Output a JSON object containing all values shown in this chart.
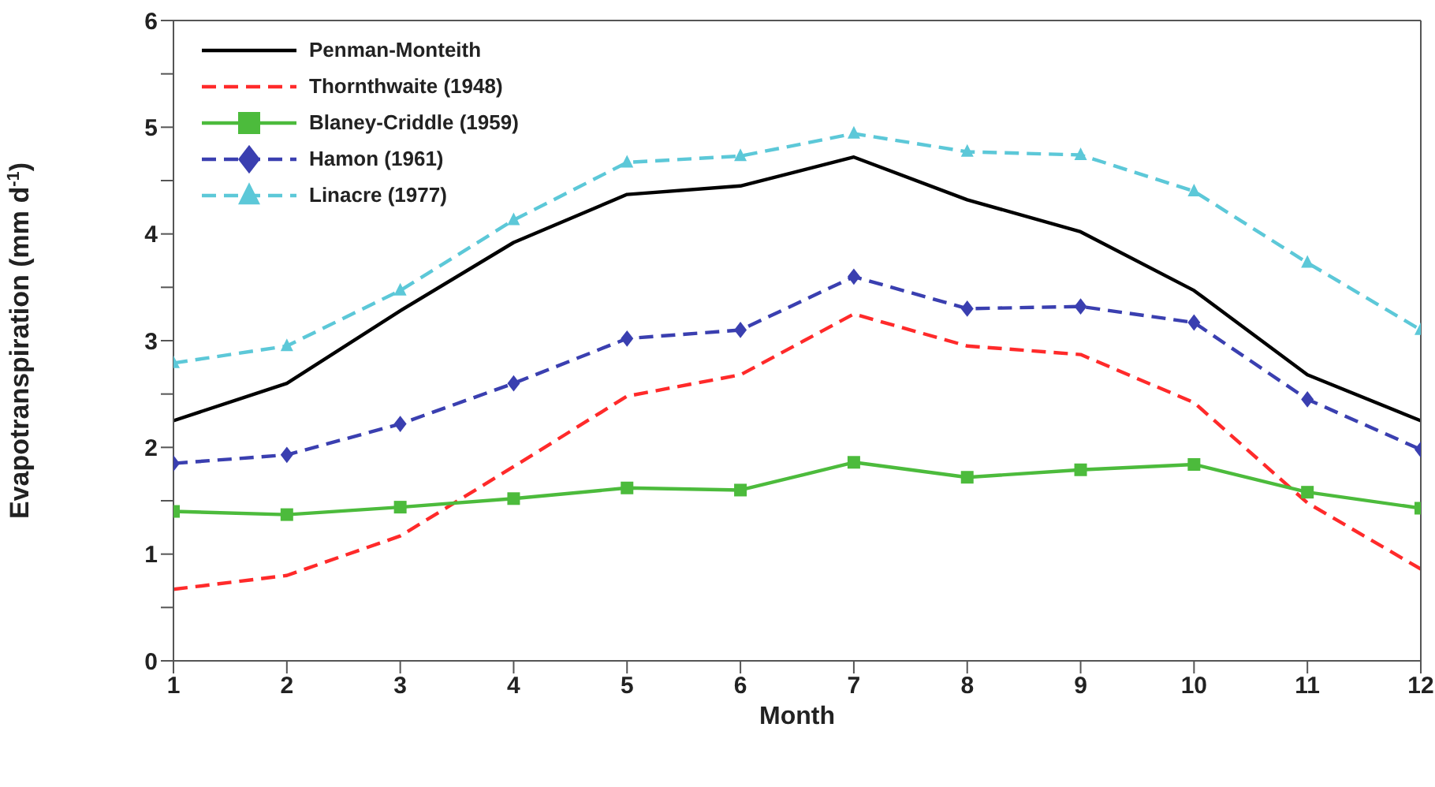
{
  "chart_data": {
    "type": "line",
    "xlabel": "Month",
    "ylabel": "Evapotranspiration (mm d$^{-1}$)",
    "x": [
      1,
      2,
      3,
      4,
      5,
      6,
      7,
      8,
      9,
      10,
      11,
      12
    ],
    "xlim": [
      1,
      12
    ],
    "xticks": [
      1,
      2,
      3,
      4,
      5,
      6,
      7,
      8,
      9,
      10,
      11,
      12
    ],
    "ylim": [
      0,
      6
    ],
    "yticks": [
      0,
      {
        "value": 0.5,
        "label": null
      },
      1,
      {
        "value": 1.5,
        "label": null
      },
      2,
      {
        "value": 2.5,
        "label": null
      },
      3,
      {
        "value": 3.5,
        "label": null
      },
      4,
      {
        "value": 4.5,
        "label": null
      },
      5,
      {
        "value": 5.5,
        "label": null
      },
      6
    ],
    "legend": "top left",
    "series": [
      {
        "name": "Penman-Monteith",
        "color": "#000000",
        "line_style": "solid",
        "marker": "none",
        "values": [
          2.25,
          2.6,
          3.28,
          3.92,
          4.37,
          4.45,
          4.72,
          4.32,
          4.02,
          3.47,
          2.68,
          2.25
        ]
      },
      {
        "name": "Thornthwaite (1948)",
        "color": "#ff2a2a",
        "line_style": "dashed",
        "marker": "none",
        "values": [
          0.67,
          0.8,
          1.17,
          1.82,
          2.48,
          2.68,
          3.25,
          2.95,
          2.87,
          2.42,
          1.48,
          0.86
        ]
      },
      {
        "name": "Blaney-Criddle (1959)",
        "color": "#4cbb3c",
        "line_style": "solid",
        "marker": "square",
        "values": [
          1.4,
          1.37,
          1.44,
          1.52,
          1.62,
          1.6,
          1.86,
          1.72,
          1.79,
          1.84,
          1.58,
          1.43
        ]
      },
      {
        "name": "Hamon (1961)",
        "color": "#3a3fb0",
        "line_style": "dashed",
        "marker": "diamond",
        "values": [
          1.85,
          1.93,
          2.22,
          2.6,
          3.02,
          3.1,
          3.6,
          3.3,
          3.32,
          3.17,
          2.45,
          1.98
        ]
      },
      {
        "name": "Linacre (1977)",
        "color": "#5cc8d8",
        "line_style": "dashed",
        "marker": "triangle",
        "values": [
          2.79,
          2.95,
          3.47,
          4.13,
          4.67,
          4.73,
          4.94,
          4.77,
          4.74,
          4.4,
          3.73,
          3.1
        ]
      }
    ]
  }
}
